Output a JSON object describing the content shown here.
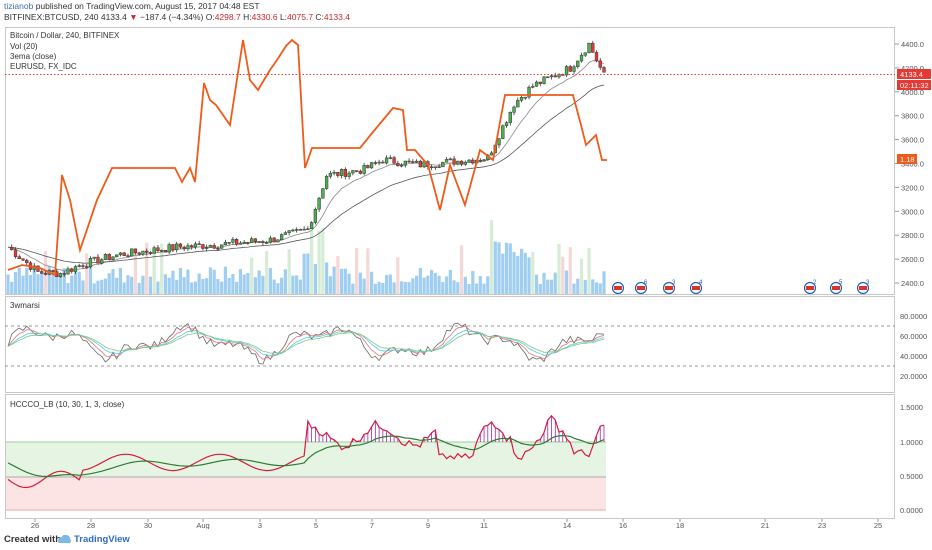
{
  "header": {
    "author": "tizianob",
    "published_text": "published on TradingView.com, August 15, 2017 04:48 EST",
    "symbol": "BITFINEX:BTCUSD, 240",
    "last": "4133.4",
    "change_arrow": "▼",
    "change": "−187.4 (−4.34%)",
    "o_label": "O:",
    "o_value": "4298.7",
    "h_label": "H:",
    "h_value": "4330.6",
    "l_label": "L:",
    "l_value": "4075.7",
    "c_label": "C:",
    "c_value": "4133.4"
  },
  "main_pane": {
    "title": "Bitcoin / Dollar, 240, BITFINEX",
    "legend": [
      "Vol (20)",
      "3ema (close)",
      "EURUSD, FX_IDC"
    ],
    "price_ticks": [
      "4400.0",
      "4200.0",
      "4000.0",
      "3800.0",
      "3600.0",
      "3400.0",
      "3200.0",
      "3000.0",
      "2800.0",
      "2600.0",
      "2400.0"
    ],
    "last_price_label": "4133.4",
    "countdown_label": "02:11:32",
    "eurusd_label": "1.18",
    "event_counts": [
      "6",
      "3",
      "4",
      "2",
      "5",
      "3"
    ]
  },
  "rsi_pane": {
    "title": "3wmarsi",
    "ticks": [
      "80.0000",
      "60.0000",
      "40.0000",
      "20.0000"
    ]
  },
  "hccco_pane": {
    "title": "HCCCO_LB (10, 30, 1, 3, close)",
    "ticks": [
      "1.5000",
      "1.0000",
      "0.5000",
      "0.0000"
    ]
  },
  "time_axis": {
    "labels": [
      "26",
      "28",
      "30",
      "Aug",
      "3",
      "5",
      "7",
      "9",
      "11",
      "14",
      "16",
      "18",
      "21",
      "23",
      "25"
    ]
  },
  "colors": {
    "candle_up": "#4caf50",
    "candle_down": "#e53935",
    "eurusd_line": "#f05a1a",
    "volume": "#8fc6ef",
    "hccco_fast": "#d81b3c",
    "hccco_slow": "#2e7d32"
  },
  "footer": {
    "created_with": "Created with",
    "brand": "TradingView"
  }
}
